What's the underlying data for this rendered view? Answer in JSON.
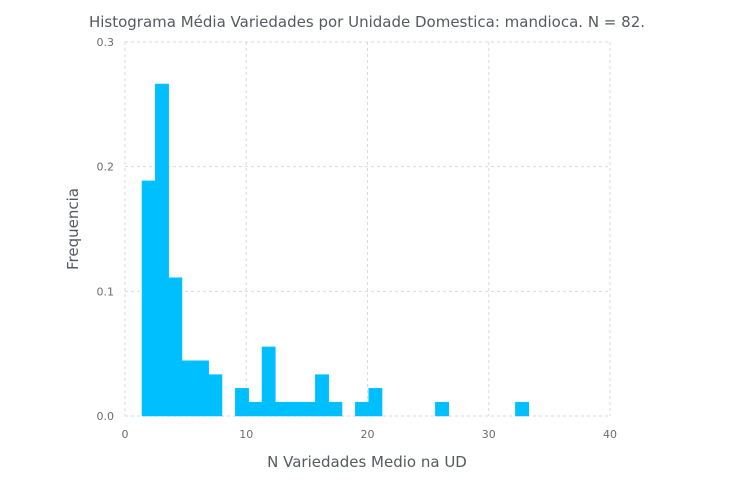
{
  "chart_data": {
    "type": "bar",
    "title": "Histograma Média Variedades por Unidade Domestica: mandioca. N = 82.",
    "xlabel": "N Variedades Medio na UD",
    "ylabel": "Frequencia",
    "xlim": [
      0,
      40
    ],
    "ylim": [
      0,
      0.3
    ],
    "x_ticks": [
      "0",
      "10",
      "20",
      "30",
      "40"
    ],
    "y_ticks": [
      "0.0",
      "0.1",
      "0.2",
      "0.3"
    ],
    "grid": true,
    "bin_width": 1.1,
    "bins": [
      {
        "x0": 1.4,
        "value": 0.1886
      },
      {
        "x0": 2.5,
        "value": 0.2663
      },
      {
        "x0": 3.6,
        "value": 0.1109
      },
      {
        "x0": 4.7,
        "value": 0.0443
      },
      {
        "x0": 5.8,
        "value": 0.0443
      },
      {
        "x0": 6.9,
        "value": 0.0332
      },
      {
        "x0": 9.1,
        "value": 0.0222
      },
      {
        "x0": 10.2,
        "value": 0.0111
      },
      {
        "x0": 11.3,
        "value": 0.0554
      },
      {
        "x0": 12.4,
        "value": 0.0111
      },
      {
        "x0": 13.5,
        "value": 0.0111
      },
      {
        "x0": 14.6,
        "value": 0.0111
      },
      {
        "x0": 15.7,
        "value": 0.0332
      },
      {
        "x0": 16.8,
        "value": 0.0111
      },
      {
        "x0": 19.0,
        "value": 0.0111
      },
      {
        "x0": 20.1,
        "value": 0.0222
      },
      {
        "x0": 25.6,
        "value": 0.0111
      },
      {
        "x0": 32.2,
        "value": 0.0111
      }
    ],
    "colors": {
      "bar": "#00bfff"
    }
  }
}
